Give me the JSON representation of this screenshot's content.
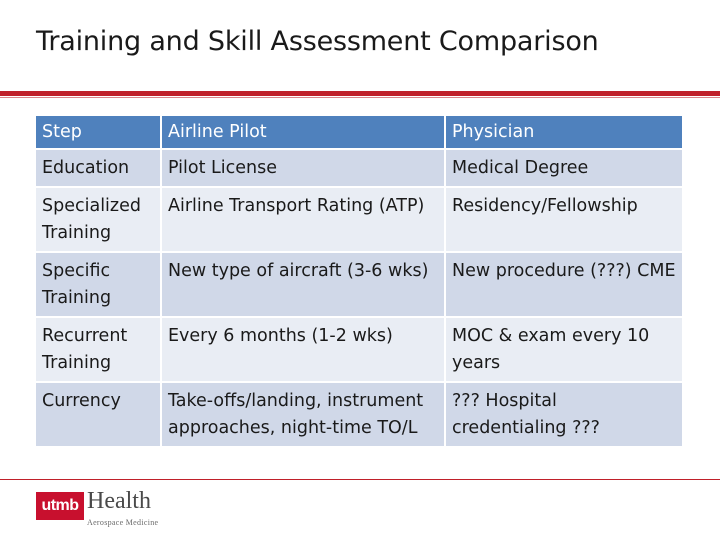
{
  "slide": {
    "title": "Training and Skill Assessment Comparison"
  },
  "table": {
    "headers": [
      "Step",
      "Airline Pilot",
      "Physician"
    ],
    "rows": [
      [
        "Education",
        "Pilot License",
        "Medical Degree"
      ],
      [
        "Specialized Training",
        "Airline Transport Rating (ATP)",
        "Residency/Fellowship"
      ],
      [
        "Specific Training",
        "New type of aircraft (3-6 wks)",
        "New procedure (???) CME"
      ],
      [
        "Recurrent Training",
        "Every 6 months (1-2 wks)",
        "MOC & exam every 10 years"
      ],
      [
        "Currency",
        "Take-offs/landing, instrument approaches, night-time TO/L",
        "??? Hospital credentialing ???"
      ]
    ]
  },
  "logo": {
    "mark": "utmb",
    "name": "Health",
    "subtitle": "Aerospace Medicine"
  },
  "colors": {
    "accent_red": "#c0202a",
    "header_blue": "#4f81bd",
    "row_odd": "#d0d8e8",
    "row_even": "#e9edf4"
  }
}
